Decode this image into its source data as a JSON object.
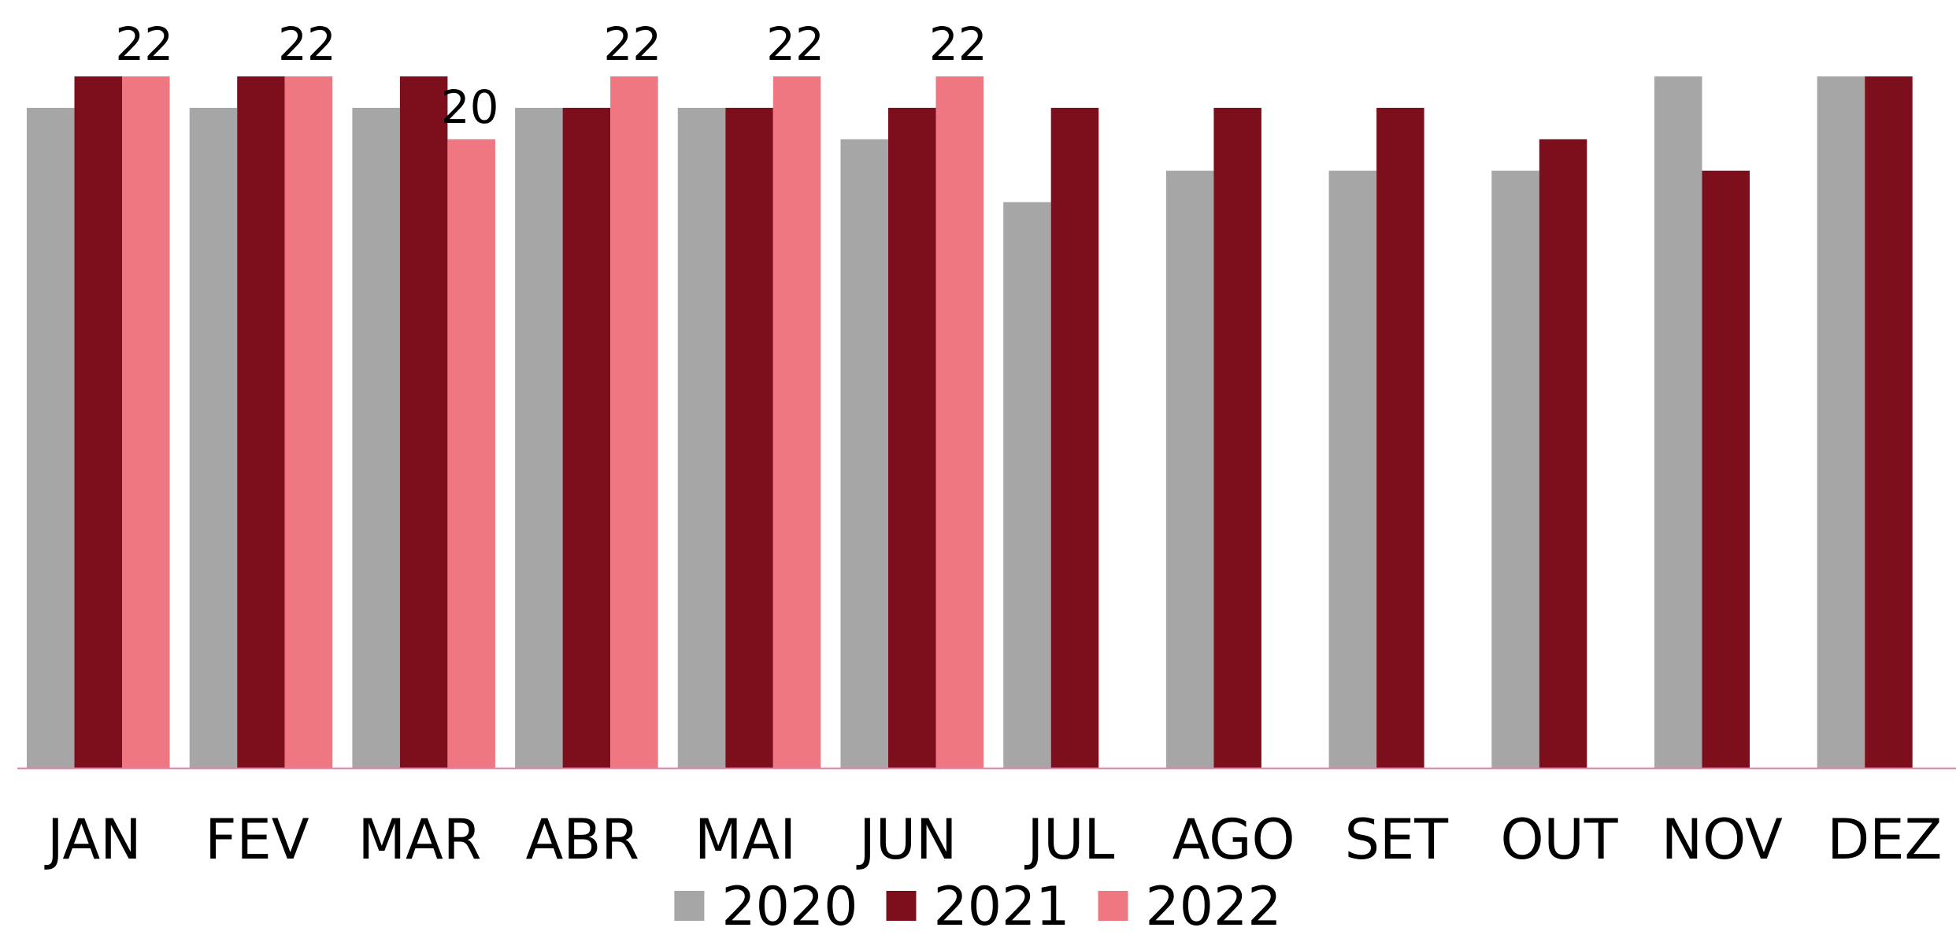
{
  "chart_data": {
    "type": "bar",
    "title": "",
    "xlabel": "",
    "ylabel": "",
    "ylim": [
      0,
      22
    ],
    "grid": false,
    "legend_position": "bottom-center",
    "categories": [
      "JAN",
      "FEV",
      "MAR",
      "ABR",
      "MAI",
      "JUN",
      "JUL",
      "AGO",
      "SET",
      "OUT",
      "NOV",
      "DEZ"
    ],
    "series": [
      {
        "name": "2020",
        "color": "#a6a6a6",
        "values": [
          21,
          21,
          21,
          21,
          21,
          20,
          18,
          19,
          19,
          19,
          22,
          22
        ],
        "show_labels": false
      },
      {
        "name": "2021",
        "color": "#7d0f1d",
        "values": [
          22,
          22,
          22,
          21,
          21,
          21,
          21,
          21,
          21,
          20,
          19,
          22
        ],
        "show_labels": false
      },
      {
        "name": "2022",
        "color": "#ee7782",
        "values": [
          22,
          22,
          20,
          22,
          22,
          22,
          null,
          null,
          null,
          null,
          null,
          null
        ],
        "show_labels": true
      }
    ],
    "axis_line_color": "#e57fa9"
  }
}
